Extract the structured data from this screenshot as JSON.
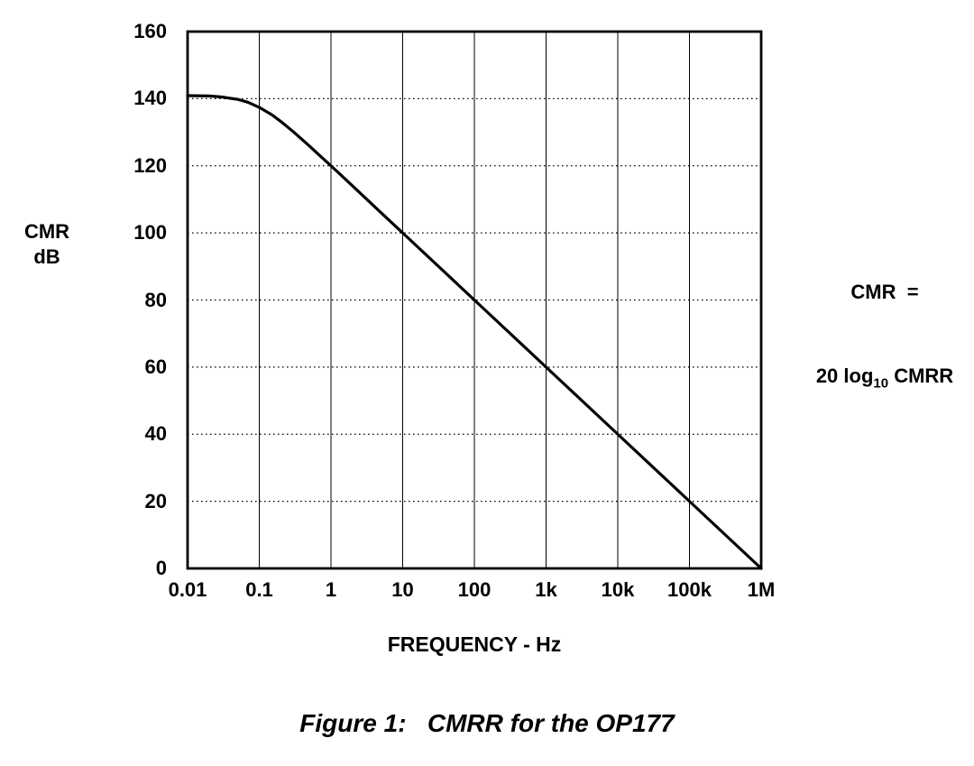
{
  "page": {
    "background": "#ffffff"
  },
  "chart_data": {
    "type": "line",
    "title": "",
    "xlabel": "FREQUENCY - Hz",
    "ylabel": "CMR dB",
    "ylabel_lines": [
      "CMR",
      "dB"
    ],
    "x_scale": "log",
    "xlim": [
      0.01,
      1000000
    ],
    "ylim": [
      0,
      160
    ],
    "x_ticks": [
      0.01,
      0.1,
      1,
      10,
      100,
      1000,
      10000,
      100000,
      1000000
    ],
    "x_tick_labels": [
      "0.01",
      "0.1",
      "1",
      "10",
      "100",
      "1k",
      "10k",
      "100k",
      "1M"
    ],
    "y_ticks": [
      0,
      20,
      40,
      60,
      80,
      100,
      120,
      140,
      160
    ],
    "y_tick_labels": [
      "0",
      "20",
      "40",
      "60",
      "80",
      "100",
      "120",
      "140",
      "160"
    ],
    "grid": {
      "vertical": "solid",
      "horizontal": "dotted",
      "on": true
    },
    "legend": "none",
    "line_color": "#000000",
    "series": [
      {
        "name": "CMR vs frequency (OP177)",
        "color": "#000000",
        "x": [
          0.01,
          0.02,
          0.03,
          0.05,
          0.07,
          0.1,
          0.15,
          0.2,
          0.3,
          0.5,
          0.7,
          1,
          2,
          5,
          10,
          100,
          1000,
          10000,
          100000,
          1000000
        ],
        "y": [
          140.9,
          140.8,
          140.5,
          139.8,
          138.9,
          137.4,
          135.2,
          133.2,
          130.1,
          125.9,
          123,
          120,
          114,
          106,
          100,
          80,
          60,
          40,
          20,
          0
        ]
      }
    ],
    "annotation": {
      "line1": "CMR  =",
      "line2_prefix": "20 log",
      "line2_sub": "10",
      "line2_suffix": " CMRR"
    },
    "caption": "Figure 1:   CMRR for the OP177"
  }
}
